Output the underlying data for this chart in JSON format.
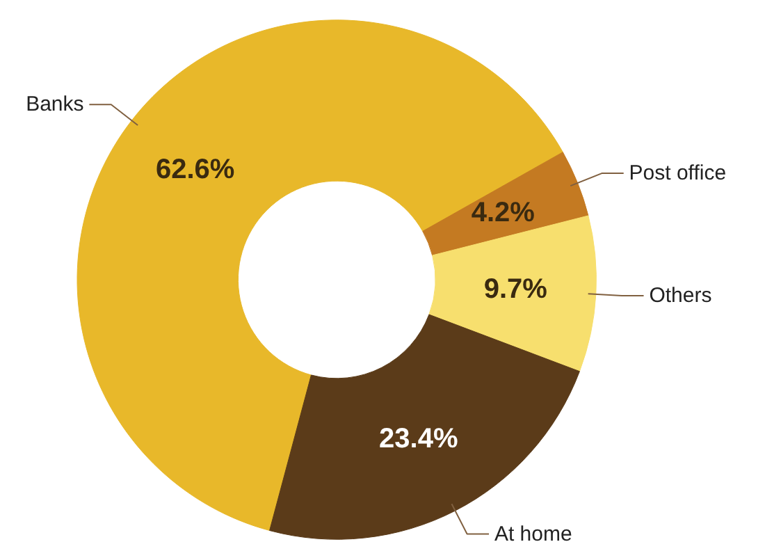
{
  "chart_data": {
    "type": "donut",
    "categories": [
      "Banks",
      "Post office",
      "Others",
      "At home"
    ],
    "values": [
      62.6,
      4.2,
      9.7,
      23.4
    ],
    "colors": [
      "#e8b82a",
      "#c47a22",
      "#f7df6e",
      "#5b3b19"
    ],
    "value_labels": [
      "62.6%",
      "4.2%",
      "9.7%",
      "23.4%"
    ],
    "legend": false
  }
}
